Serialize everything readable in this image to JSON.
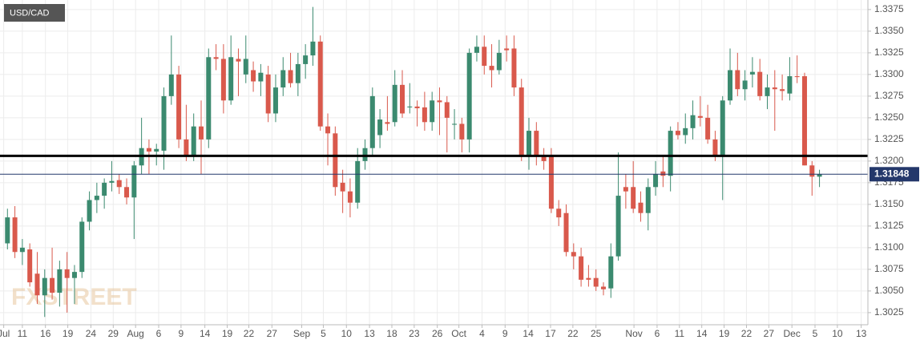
{
  "chart_data": {
    "type": "candlestick",
    "title": "USD/CAD",
    "watermark": "FXSTREET",
    "up_color": "#3b8a6f",
    "down_color": "#d9594c",
    "grid": true,
    "open": [
      1.3105,
      1.3135,
      1.3095,
      1.3098,
      1.307,
      1.3045,
      1.3065,
      1.3048,
      1.3075,
      1.3065,
      1.3072,
      1.313,
      1.3155,
      1.316,
      1.3175,
      1.3178,
      1.317,
      1.3158,
      1.3195,
      1.3215,
      1.3211,
      1.3212,
      1.3275,
      1.33,
      1.3225,
      1.3205,
      1.324,
      1.3225,
      1.332,
      1.3318,
      1.327,
      1.3318,
      1.33,
      1.3305,
      1.3292,
      1.33,
      1.3255,
      1.3285,
      1.3305,
      1.329,
      1.3312,
      1.3322,
      1.3338,
      1.324,
      1.3232,
      1.3175,
      1.3165,
      1.3152,
      1.32,
      1.3215,
      1.323,
      1.3245,
      1.3245,
      1.3288,
      1.3262,
      1.3263,
      1.3262,
      1.3245,
      1.327,
      1.3268,
      1.3242,
      1.3243,
      1.3225,
      1.3325,
      1.3332,
      1.331,
      1.3305,
      1.333,
      1.333,
      1.3285,
      1.3205,
      1.3235,
      1.3205,
      1.3205,
      1.3145,
      1.314,
      1.3095,
      1.309,
      1.3065,
      1.3065,
      1.3055,
      1.3053,
      1.309,
      1.317,
      1.317,
      1.3152,
      1.314,
      1.317,
      1.3188,
      1.3183,
      1.3235,
      1.323,
      1.3238,
      1.3252,
      1.325,
      1.3225,
      1.3205,
      1.327,
      1.3305,
      1.3283,
      1.33,
      1.3303,
      1.3275,
      1.3285,
      1.3283,
      1.3278,
      1.3298,
      1.3298,
      1.3195,
      1.3182
    ],
    "high": [
      1.3145,
      1.3148,
      1.311,
      1.3105,
      1.3095,
      1.3075,
      1.31,
      1.3085,
      1.3095,
      1.308,
      1.3135,
      1.3165,
      1.3175,
      1.318,
      1.32,
      1.3185,
      1.318,
      1.32,
      1.325,
      1.3225,
      1.322,
      1.3285,
      1.3345,
      1.331,
      1.3265,
      1.3255,
      1.327,
      1.333,
      1.3335,
      1.3335,
      1.3345,
      1.333,
      1.3345,
      1.3315,
      1.3312,
      1.331,
      1.33,
      1.332,
      1.3325,
      1.3325,
      1.3335,
      1.3378,
      1.3345,
      1.3255,
      1.324,
      1.319,
      1.318,
      1.3215,
      1.3225,
      1.3285,
      1.326,
      1.3275,
      1.3305,
      1.3305,
      1.329,
      1.327,
      1.328,
      1.328,
      1.3285,
      1.3275,
      1.326,
      1.325,
      1.333,
      1.3345,
      1.3345,
      1.3335,
      1.334,
      1.3345,
      1.3345,
      1.3295,
      1.325,
      1.3245,
      1.3215,
      1.3215,
      1.3155,
      1.315,
      1.3105,
      1.31,
      1.308,
      1.3075,
      1.306,
      1.3105,
      1.321,
      1.3185,
      1.32,
      1.3165,
      1.318,
      1.32,
      1.3205,
      1.324,
      1.3245,
      1.3255,
      1.327,
      1.3275,
      1.3265,
      1.3235,
      1.3275,
      1.333,
      1.3325,
      1.3305,
      1.332,
      1.3318,
      1.33,
      1.3305,
      1.33,
      1.332,
      1.3322,
      1.3302,
      1.32,
      1.319
    ],
    "low": [
      1.3098,
      1.3088,
      1.308,
      1.3055,
      1.3035,
      1.302,
      1.304,
      1.3032,
      1.3025,
      1.3035,
      1.3065,
      1.312,
      1.314,
      1.3145,
      1.3165,
      1.3162,
      1.315,
      1.311,
      1.3185,
      1.3185,
      1.3195,
      1.319,
      1.3265,
      1.3215,
      1.32,
      1.32,
      1.3185,
      1.3215,
      1.3305,
      1.3255,
      1.3265,
      1.3275,
      1.329,
      1.328,
      1.3275,
      1.3245,
      1.3245,
      1.3275,
      1.3285,
      1.3275,
      1.3295,
      1.331,
      1.3235,
      1.3195,
      1.316,
      1.314,
      1.3135,
      1.3145,
      1.319,
      1.3205,
      1.3215,
      1.3235,
      1.324,
      1.325,
      1.3255,
      1.324,
      1.3235,
      1.3235,
      1.323,
      1.321,
      1.3225,
      1.321,
      1.321,
      1.3315,
      1.33,
      1.3285,
      1.33,
      1.3315,
      1.3275,
      1.32,
      1.319,
      1.3195,
      1.319,
      1.314,
      1.3125,
      1.309,
      1.3075,
      1.3055,
      1.3055,
      1.305,
      1.3045,
      1.3042,
      1.3085,
      1.3145,
      1.314,
      1.313,
      1.312,
      1.316,
      1.317,
      1.3165,
      1.3225,
      1.322,
      1.3225,
      1.324,
      1.322,
      1.32,
      1.3155,
      1.3265,
      1.3275,
      1.327,
      1.3285,
      1.327,
      1.326,
      1.3235,
      1.327,
      1.327,
      1.329,
      1.3195,
      1.316,
      1.317
    ],
    "close": [
      1.3135,
      1.3095,
      1.31,
      1.306,
      1.3045,
      1.3065,
      1.3048,
      1.3075,
      1.3065,
      1.3072,
      1.313,
      1.3155,
      1.316,
      1.3175,
      1.3177,
      1.317,
      1.3158,
      1.3195,
      1.3215,
      1.3211,
      1.3214,
      1.3275,
      1.33,
      1.3225,
      1.3205,
      1.324,
      1.3225,
      1.332,
      1.3318,
      1.327,
      1.332,
      1.3315,
      1.3318,
      1.3292,
      1.3302,
      1.3255,
      1.3285,
      1.3305,
      1.329,
      1.3312,
      1.3322,
      1.3338,
      1.324,
      1.3232,
      1.317,
      1.3165,
      1.3152,
      1.32,
      1.3215,
      1.3275,
      1.3248,
      1.3243,
      1.3288,
      1.3255,
      1.3263,
      1.3261,
      1.3245,
      1.327,
      1.3268,
      1.325,
      1.3243,
      1.3225,
      1.3325,
      1.3332,
      1.331,
      1.3305,
      1.3325,
      1.3328,
      1.3285,
      1.3205,
      1.3235,
      1.3205,
      1.32,
      1.3145,
      1.3135,
      1.3095,
      1.309,
      1.3063,
      1.3063,
      1.3055,
      1.3052,
      1.309,
      1.316,
      1.3165,
      1.3145,
      1.314,
      1.317,
      1.3185,
      1.3183,
      1.3235,
      1.323,
      1.3238,
      1.3253,
      1.325,
      1.3225,
      1.3205,
      1.327,
      1.3305,
      1.3283,
      1.3293,
      1.3303,
      1.3275,
      1.3285,
      1.3283,
      1.3281,
      1.3298,
      1.3297,
      1.3195,
      1.3182,
      1.3185
    ],
    "xlim": [
      -1,
      115.5
    ],
    "xticks": [
      {
        "value": -0.5,
        "label": "Jul"
      },
      {
        "value": 2,
        "label": "11"
      },
      {
        "value": 5.1,
        "label": "16"
      },
      {
        "value": 8.1,
        "label": "19"
      },
      {
        "value": 11.2,
        "label": "24"
      },
      {
        "value": 14.2,
        "label": "29"
      },
      {
        "value": 17.2,
        "label": "Aug"
      },
      {
        "value": 20.3,
        "label": "6"
      },
      {
        "value": 23.3,
        "label": "9"
      },
      {
        "value": 26.5,
        "label": "14"
      },
      {
        "value": 29.5,
        "label": "19"
      },
      {
        "value": 32.4,
        "label": "22"
      },
      {
        "value": 35.5,
        "label": "27"
      },
      {
        "value": 39.5,
        "label": "Sep"
      },
      {
        "value": 42.4,
        "label": "5"
      },
      {
        "value": 45.5,
        "label": "10"
      },
      {
        "value": 48.6,
        "label": "13"
      },
      {
        "value": 51.6,
        "label": "18"
      },
      {
        "value": 54.6,
        "label": "23"
      },
      {
        "value": 57.7,
        "label": "26"
      },
      {
        "value": 60.6,
        "label": "Oct"
      },
      {
        "value": 63.7,
        "label": "4"
      },
      {
        "value": 66.8,
        "label": "9"
      },
      {
        "value": 69.9,
        "label": "14"
      },
      {
        "value": 72.9,
        "label": "17"
      },
      {
        "value": 75.9,
        "label": "22"
      },
      {
        "value": 79,
        "label": "25"
      },
      {
        "value": 84.1,
        "label": "Nov"
      },
      {
        "value": 87.2,
        "label": "6"
      },
      {
        "value": 90.2,
        "label": "11"
      },
      {
        "value": 93.2,
        "label": "14"
      },
      {
        "value": 96.2,
        "label": "19"
      },
      {
        "value": 99.2,
        "label": "22"
      },
      {
        "value": 102.2,
        "label": "27"
      },
      {
        "value": 105.3,
        "label": "Dec"
      },
      {
        "value": 108.4,
        "label": "5"
      },
      {
        "value": 111.4,
        "label": "10"
      },
      {
        "value": 114.6,
        "label": "13"
      }
    ],
    "ylim": [
      1.3011,
      1.3386
    ],
    "yticks": [
      1.3025,
      {
        "value": 1.305,
        "label": "1.3050"
      },
      1.3075,
      {
        "value": 1.31,
        "label": "1.3100"
      },
      1.3125,
      {
        "value": 1.315,
        "label": "1.3150"
      },
      1.3175,
      {
        "value": 1.32,
        "label": "1.3200"
      },
      1.3225,
      {
        "value": 1.325,
        "label": "1.3250"
      },
      1.3275,
      {
        "value": 1.33,
        "label": "1.3300"
      },
      1.3325,
      {
        "value": 1.335,
        "label": "1.3350"
      },
      1.3375
    ],
    "current_price": 1.31848,
    "current_price_color": "#24386b",
    "horizontal_line": 1.3206,
    "horizontal_line_color": "#000000"
  }
}
